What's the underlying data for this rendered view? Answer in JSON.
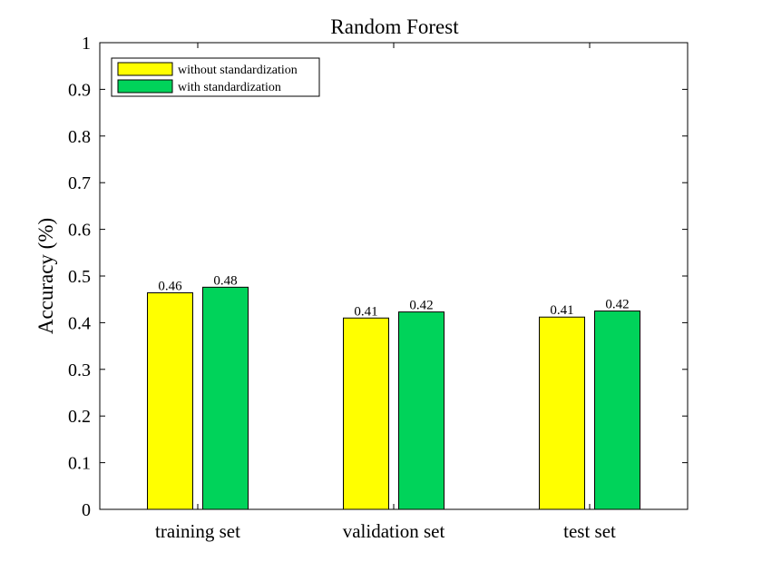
{
  "chart_data": {
    "type": "bar",
    "title": "Random Forest",
    "xlabel": "",
    "ylabel": "Accuracy (%)",
    "ylim": [
      0,
      1
    ],
    "yticks": [
      "0",
      "0.1",
      "0.2",
      "0.3",
      "0.4",
      "0.5",
      "0.6",
      "0.7",
      "0.8",
      "0.9",
      "1"
    ],
    "categories": [
      "training set",
      "validation set",
      "test set"
    ],
    "series": [
      {
        "name": "without standardization",
        "color": "#ffff00",
        "values": [
          0.464,
          0.41,
          0.412
        ],
        "labels": [
          "0.46",
          "0.41",
          "0.41"
        ]
      },
      {
        "name": "with standardization",
        "color": "#00d35a",
        "values": [
          0.476,
          0.423,
          0.425
        ],
        "labels": [
          "0.48",
          "0.42",
          "0.42"
        ]
      }
    ],
    "legend_position": "top-left",
    "grid": false,
    "box": true
  }
}
